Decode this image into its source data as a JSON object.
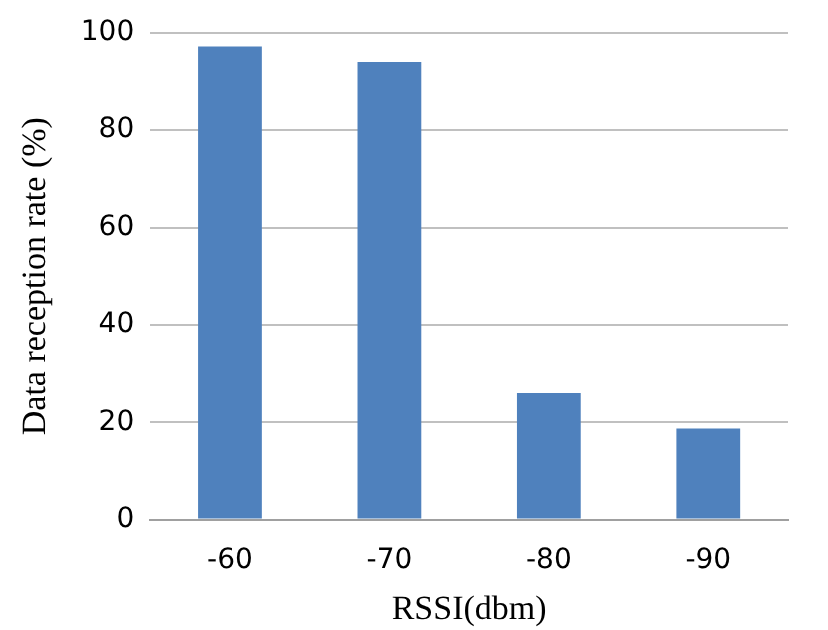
{
  "chart_data": {
    "type": "bar",
    "xlabel": "RSSI(dbm)",
    "ylabel": "Data reception rate (%)",
    "categories": [
      "-60",
      "-70",
      "-80",
      "-90"
    ],
    "values": [
      97.2,
      94,
      26,
      18.7
    ],
    "color": "#4f81bd",
    "ylim": [
      0,
      100
    ],
    "yticks": [
      0,
      20,
      40,
      60,
      80,
      100
    ],
    "grid": "y",
    "legend": false
  }
}
